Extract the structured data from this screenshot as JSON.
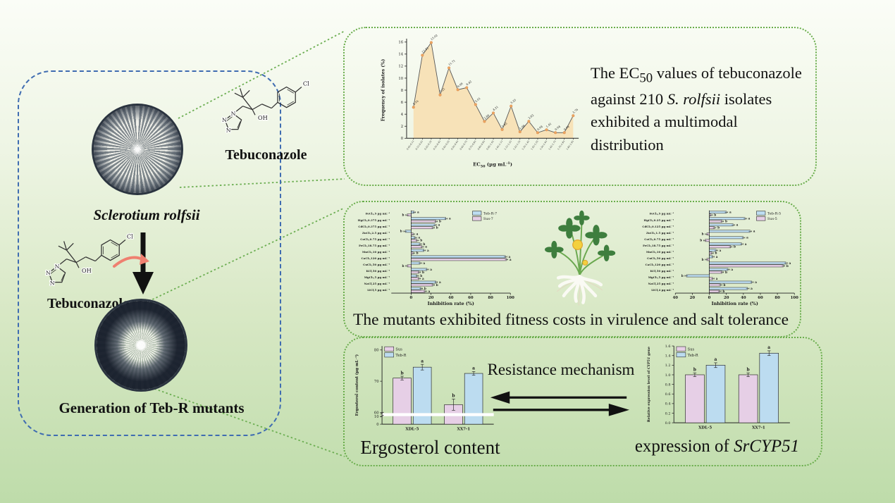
{
  "colors": {
    "panel_green_border": "#69ad4b",
    "panel_blue_border": "#3f6cb1",
    "bar_blue": "#bcdcf0",
    "bar_pink": "#e6cfe6",
    "area_fill": "#f7e2b8",
    "point_orange": "#eda55f",
    "arrow_red": "#ef8070",
    "background_top": "#fbfdf7",
    "background_bottom": "#bedcaa"
  },
  "left_panel": {
    "species": "Sclerotium rolfsii",
    "teb_label_top": "Tebuconazole",
    "teb_label_bottom": "Tebuconazole",
    "generation": "Generation of Teb-R mutants",
    "atoms": {
      "n1": "N",
      "n2": "N",
      "n3": "N",
      "oh": "OH",
      "cl": "Cl"
    }
  },
  "top_panel": {
    "text": {
      "p1": "The EC",
      "sub": "50",
      "p2": " values of tebuconazole against 210 ",
      "it": "S. rolfsii",
      "p3": " isolates exhibited a multimodal distribution"
    }
  },
  "middle_panel": {
    "caption": "The mutants exhibited fitness costs in virulence and salt tolerance"
  },
  "bottom_panel": {
    "ergosterol_caption": "Ergosterol content",
    "mechanism_label": "Resistance mechanism",
    "expression_caption": {
      "p1": "expression of ",
      "it": "SrCYP51"
    }
  },
  "chart_data": [
    {
      "id": "ec50",
      "type": "area",
      "ylabel": "Frequency of isolates (%)",
      "xlabel": "EC50 (µg mL-1)",
      "xlabel_parts": {
        "p1": "EC",
        "sub": "50",
        "p2": " (µg mL",
        "sup": "-1",
        "p3": ")"
      },
      "ylim": [
        0,
        16
      ],
      "yticks": [
        0,
        2,
        4,
        6,
        8,
        10,
        12,
        14,
        16
      ],
      "x_bin_labels": [
        "0.01-0.11",
        "0.11-0.21",
        "0.21-0.31",
        "0.31-0.41",
        "0.41-0.51",
        "0.51-0.61",
        "0.61-0.71",
        "0.71-0.81",
        "0.81-0.91",
        "0.91-1.01",
        "1.01-1.11",
        "1.11-1.21",
        "1.21-1.31",
        "1.31-1.41",
        "1.41-1.51",
        "1.51-1.61",
        "1.61-1.71",
        "1.71-1.81",
        "1.81-1.91"
      ],
      "values": [
        5.16,
        13.81,
        15.92,
        7.21,
        11.71,
        8.08,
        8.42,
        5.61,
        2.8,
        4.21,
        1.45,
        5.35,
        1.08,
        2.82,
        0.94,
        1.41,
        0.94,
        0.94,
        3.76
      ],
      "point_labels": [
        "5.16",
        "13.81",
        "15.92",
        "7.21",
        "11.71",
        "8.08",
        "8.42",
        "5.61",
        "2.80",
        "4.21",
        "1.45",
        "5.35",
        "1.08",
        "2.82",
        "0.94",
        "1.41",
        "0.94",
        "0.94",
        "3.76"
      ]
    },
    {
      "id": "salt_left",
      "type": "bar",
      "orientation": "horizontal",
      "legend": [
        "Teb-R-7",
        "Sus-7"
      ],
      "xlabel": "Inhibition rate (%)",
      "xlim": [
        -20,
        100
      ],
      "xticks": [
        0,
        20,
        40,
        60,
        80,
        100
      ],
      "categories": [
        "FeCl₃,5 µg mL⁻¹",
        "HgCl₂,0.375 µg mL⁻¹",
        "CdCl₂,0.375 µg mL⁻¹",
        "ZnCl₂,2.5 µg mL⁻¹",
        "CoCl₂,0.75 µg mL⁻¹",
        "FeCl₂,18.75 µg mL⁻¹",
        "MnCl₂,10 µg mL⁻¹",
        "CaCl₂,120 µg mL⁻¹",
        "CuCl₂,50 µg mL⁻¹",
        "KCl,50 µg mL⁻¹",
        "MgCl₂,5 µg mL⁻¹",
        "NaCl,25 µg mL⁻¹",
        "LiCl,5 µg mL⁻¹"
      ],
      "series": [
        {
          "name": "Teb-R-7",
          "values": [
            3,
            35,
            24,
            -6,
            4,
            9,
            13,
            95,
            9,
            16,
            6,
            25,
            10
          ],
          "letters": [
            "a",
            "a",
            "a",
            "b",
            "a",
            "b",
            "a",
            "a",
            "a",
            "a",
            "b",
            "a",
            "b"
          ]
        },
        {
          "name": "Sus-7",
          "values": [
            -4,
            25,
            22,
            2,
            6,
            11,
            2,
            96,
            -4,
            8,
            8,
            22,
            14
          ],
          "letters": [
            "b",
            "b",
            "b",
            "a",
            "b",
            "a",
            "b",
            "a",
            "b",
            "b",
            "a",
            "b",
            "a"
          ]
        }
      ]
    },
    {
      "id": "salt_right",
      "type": "bar",
      "orientation": "horizontal",
      "legend": [
        "Teb-R-5",
        "Sus-5"
      ],
      "xlabel": "Inhibition rate (%)",
      "xlim": [
        -40,
        100
      ],
      "xticks": [
        -40,
        -20,
        0,
        20,
        40,
        60,
        80,
        100
      ],
      "categories": [
        "FeCl₃,5 µg mL⁻¹",
        "HgCl₂,0.25 µg mL⁻¹",
        "CdCl₂,0.125 µg mL⁻¹",
        "ZnCl₂,1.5 µg mL⁻¹",
        "CoCl₂,0.75 µg mL⁻¹",
        "FeCl₂,18.75 µg mL⁻¹",
        "MnCl₂,10 µg mL⁻¹",
        "CuCl₂,50 µg mL⁻¹",
        "CaCl₂,120 µg mL⁻¹",
        "KCl,50 µg mL⁻¹",
        "MgCl₂,5 µg mL⁻¹",
        "NaCl,25 µg mL⁻¹",
        "LiCl,4 µg mL⁻¹"
      ],
      "series": [
        {
          "name": "Teb-R-5",
          "values": [
            20,
            42,
            28,
            48,
            40,
            38,
            8,
            4,
            90,
            22,
            -27,
            50,
            45
          ],
          "letters": [
            "a",
            "a",
            "a",
            "a",
            "a",
            "a",
            "a",
            "a",
            "a",
            "a",
            "b",
            "a",
            "a"
          ]
        },
        {
          "name": "Sus-5",
          "values": [
            2,
            15,
            6,
            -3,
            -5,
            25,
            3,
            -3,
            87,
            15,
            4,
            13,
            12
          ],
          "letters": [
            "b",
            "b",
            "b",
            "b",
            "b",
            "b",
            "b",
            "b",
            "b",
            "b",
            "a",
            "b",
            "b"
          ]
        }
      ]
    },
    {
      "id": "ergosterol",
      "type": "bar",
      "broken_axis": true,
      "ylabel": "Ergosterol content (µg mL⁻¹)",
      "categories": [
        "XDL-5",
        "XX7-1"
      ],
      "yticks_lower": [
        0,
        10
      ],
      "yticks_upper": [
        60,
        70,
        80
      ],
      "break_between": [
        10,
        60
      ],
      "series": [
        {
          "name": "Sus",
          "values": [
            71,
            62.5
          ],
          "errors": [
            0.6,
            1.8
          ],
          "letters": [
            "b",
            "b"
          ]
        },
        {
          "name": "Teb-R",
          "values": [
            74.5,
            72.5
          ],
          "errors": [
            0.9,
            0.6
          ],
          "letters": [
            "a",
            "a"
          ]
        }
      ]
    },
    {
      "id": "cyp51",
      "type": "bar",
      "ylabel": "Relative expression level of CYP51 gene",
      "ylabel_parts": {
        "p1": "Relative expression level of ",
        "it": "CYP51",
        "p2": " gene"
      },
      "categories": [
        "XDL-5",
        "XX7-1"
      ],
      "ylim": [
        0,
        1.6
      ],
      "yticks": [
        0,
        0.2,
        0.4,
        0.6,
        0.8,
        1.0,
        1.2,
        1.4,
        1.6
      ],
      "series": [
        {
          "name": "Sus",
          "values": [
            1.0,
            1.0
          ],
          "errors": [
            0.04,
            0.04
          ],
          "letters": [
            "b",
            "b"
          ]
        },
        {
          "name": "Teb-R",
          "values": [
            1.2,
            1.45
          ],
          "errors": [
            0.05,
            0.05
          ],
          "letters": [
            "a",
            "a"
          ]
        }
      ]
    }
  ]
}
